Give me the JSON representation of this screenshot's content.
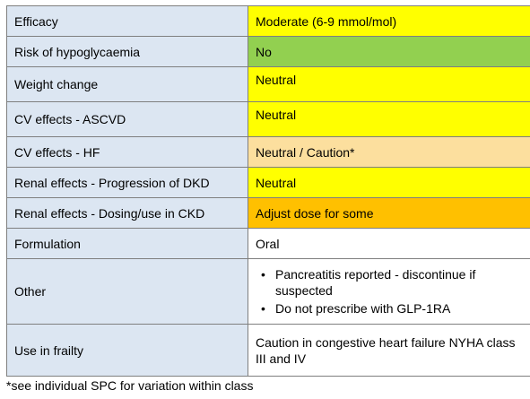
{
  "colors": {
    "label_bg": "#dce6f2",
    "yellow": "#ffff00",
    "green": "#92d050",
    "peach": "#fcdf9e",
    "orange": "#ffc000",
    "white": "#ffffff",
    "border": "#7f7f7f"
  },
  "rows": [
    {
      "label": "Efficacy",
      "value": "Moderate (6-9 mmol/mol)",
      "color": "#ffff00"
    },
    {
      "label": "Risk of hypoglycaemia",
      "value": "No",
      "color": "#92d050"
    },
    {
      "label": "Weight change",
      "value": "Neutral",
      "color": "#ffff00"
    },
    {
      "label": "CV effects - ASCVD",
      "value": "Neutral",
      "color": "#ffff00"
    },
    {
      "label": "CV effects - HF",
      "value": "Neutral / Caution*",
      "color": "#fcdf9e"
    },
    {
      "label": "Renal effects - Progression of DKD",
      "value": "Neutral",
      "color": "#ffff00"
    },
    {
      "label": "Renal effects - Dosing/use in CKD",
      "value": "Adjust dose for some",
      "color": "#ffc000"
    },
    {
      "label": "Formulation",
      "value": "Oral",
      "color": "#ffffff"
    }
  ],
  "other": {
    "label": "Other",
    "bullets": [
      "Pancreatitis reported - discontinue if suspected",
      "Do not prescribe with GLP-1RA"
    ]
  },
  "frailty": {
    "label": "Use in frailty",
    "value": "Caution in congestive heart failure NYHA class III and IV"
  },
  "footnote": "*see individual SPC for variation within class"
}
